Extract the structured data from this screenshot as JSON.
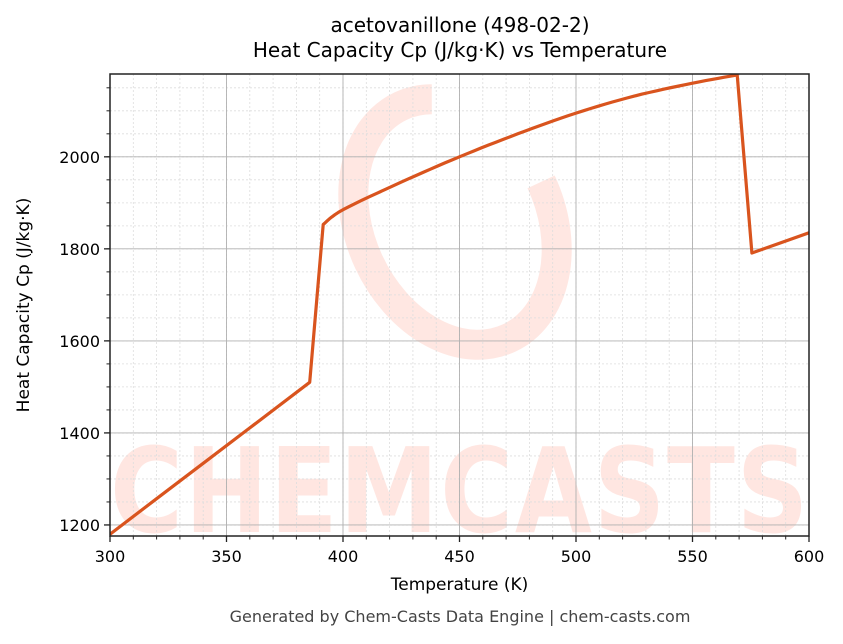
{
  "header": {
    "title_line1": "acetovanillone (498-02-2)",
    "title_line2": "Heat Capacity Cp (J/kg·K) vs Temperature"
  },
  "footer": {
    "text": "Generated by Chem-Casts Data Engine | chem-casts.com"
  },
  "watermark": {
    "text": "CHEMCASTS"
  },
  "colors": {
    "line": "#d9541e",
    "watermark": "#ff6a4d",
    "grid_major": "#b0b0b0",
    "grid_minor": "#dddddd"
  },
  "chart_data": {
    "type": "line",
    "title": "acetovanillone (498-02-2)\nHeat Capacity Cp (J/kg·K) vs Temperature",
    "xlabel": "Temperature (K)",
    "ylabel": "Heat Capacity Cp (J/kg·K)",
    "xlim": [
      300,
      600
    ],
    "ylim": [
      1176,
      2180
    ],
    "xticks": [
      300,
      350,
      400,
      450,
      500,
      550,
      600
    ],
    "yticks": [
      1200,
      1400,
      1600,
      1800,
      2000
    ],
    "grid": {
      "major": true,
      "minor": true
    },
    "legend": null,
    "series": [
      {
        "name": "Cp",
        "x": [
          300,
          320,
          340,
          360,
          385.7,
          391.5,
          400,
          425,
          450,
          475,
          500,
          525,
          550,
          569.2,
          575.5,
          600
        ],
        "y": [
          1180,
          1257,
          1334,
          1411,
          1510,
          1853,
          1885,
          1945,
          2000,
          2050,
          2095,
          2132,
          2160,
          2178,
          1791,
          1835
        ]
      }
    ]
  }
}
